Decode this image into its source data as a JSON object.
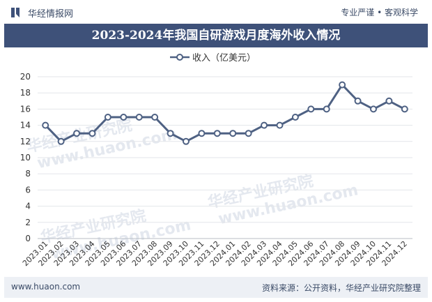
{
  "header": {
    "brand": "华经情报网",
    "slogan": "专业严谨 • 客观科学",
    "title": "2023-2024年我国自研游戏月度海外收入情况"
  },
  "footer": {
    "site": "www.huaon.com",
    "source": "资料来源：公开资料，华经产业研究院整理"
  },
  "watermark": {
    "cn": "华经产业研究院",
    "en": "www.huaon.com"
  },
  "colors": {
    "line": "#4e6183",
    "marker_fill": "#ffffff",
    "title_bg": "#3e5179",
    "grid": "#e3e6ea"
  },
  "chart_data": {
    "type": "line",
    "title": "2023-2024年我国自研游戏月度海外收入情况",
    "legend_position": "top",
    "grid": true,
    "ylim": [
      0,
      20
    ],
    "yticks": [
      0,
      2,
      4,
      6,
      8,
      10,
      12,
      14,
      16,
      18,
      20
    ],
    "categories": [
      "2023.01",
      "2023.02",
      "2023.03",
      "2023.04",
      "2023.05",
      "2023.06",
      "2023.07",
      "2023.08",
      "2023.09",
      "2023.10",
      "2023.11",
      "2023.12",
      "2024.01",
      "2024.02",
      "2024.03",
      "2024.04",
      "2024.05",
      "2024.06",
      "2024.07",
      "2024.08",
      "2024.09",
      "2024.10",
      "2024.11",
      "2024.12"
    ],
    "series": [
      {
        "name": "收入（亿美元）",
        "values": [
          14,
          12,
          13,
          13,
          15,
          15,
          15,
          15,
          13,
          12,
          13,
          13,
          13,
          13,
          14,
          14,
          15,
          16,
          16,
          19,
          17,
          16,
          17,
          16
        ]
      }
    ]
  }
}
